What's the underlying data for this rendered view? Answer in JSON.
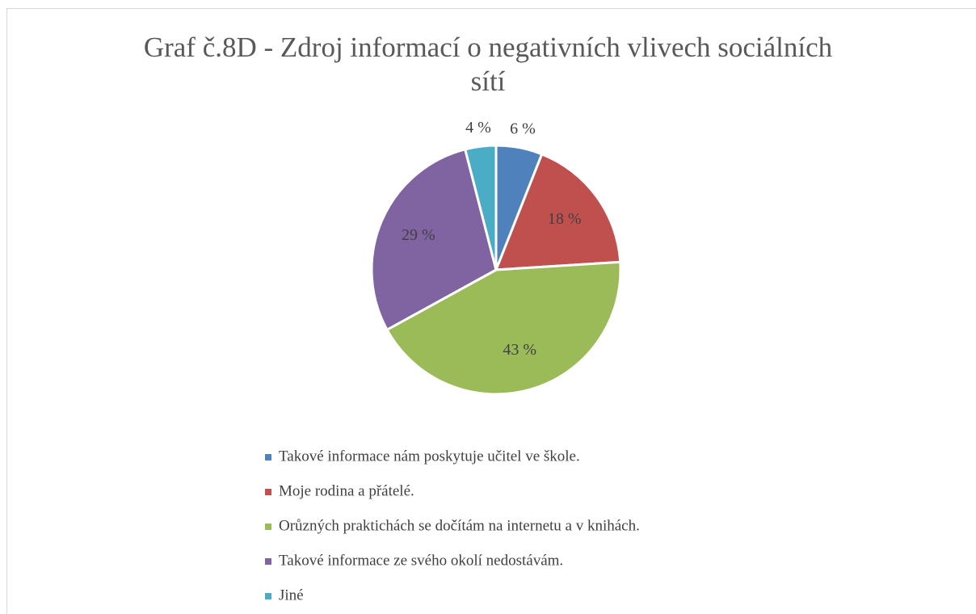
{
  "chart_data": {
    "type": "pie",
    "title": "Graf č.8D - Zdroj informací o negativních vlivech sociálních sítí",
    "categories": [
      "Takové informace nám poskytuje učitel ve škole.",
      "Moje rodina a přátelé.",
      "Orůzných praktichách se dočítám na internetu a v knihách.",
      "Takové informace ze svého okolí nedostávám.",
      "Jiné"
    ],
    "values": [
      6,
      18,
      43,
      29,
      4
    ],
    "value_labels": [
      "6 %",
      "18 %",
      "43 %",
      "29 %",
      "4 %"
    ],
    "colors": [
      "#4f81bd",
      "#c0504d",
      "#9bbb59",
      "#8064a2",
      "#4bacc6"
    ],
    "legend": "bottom"
  }
}
